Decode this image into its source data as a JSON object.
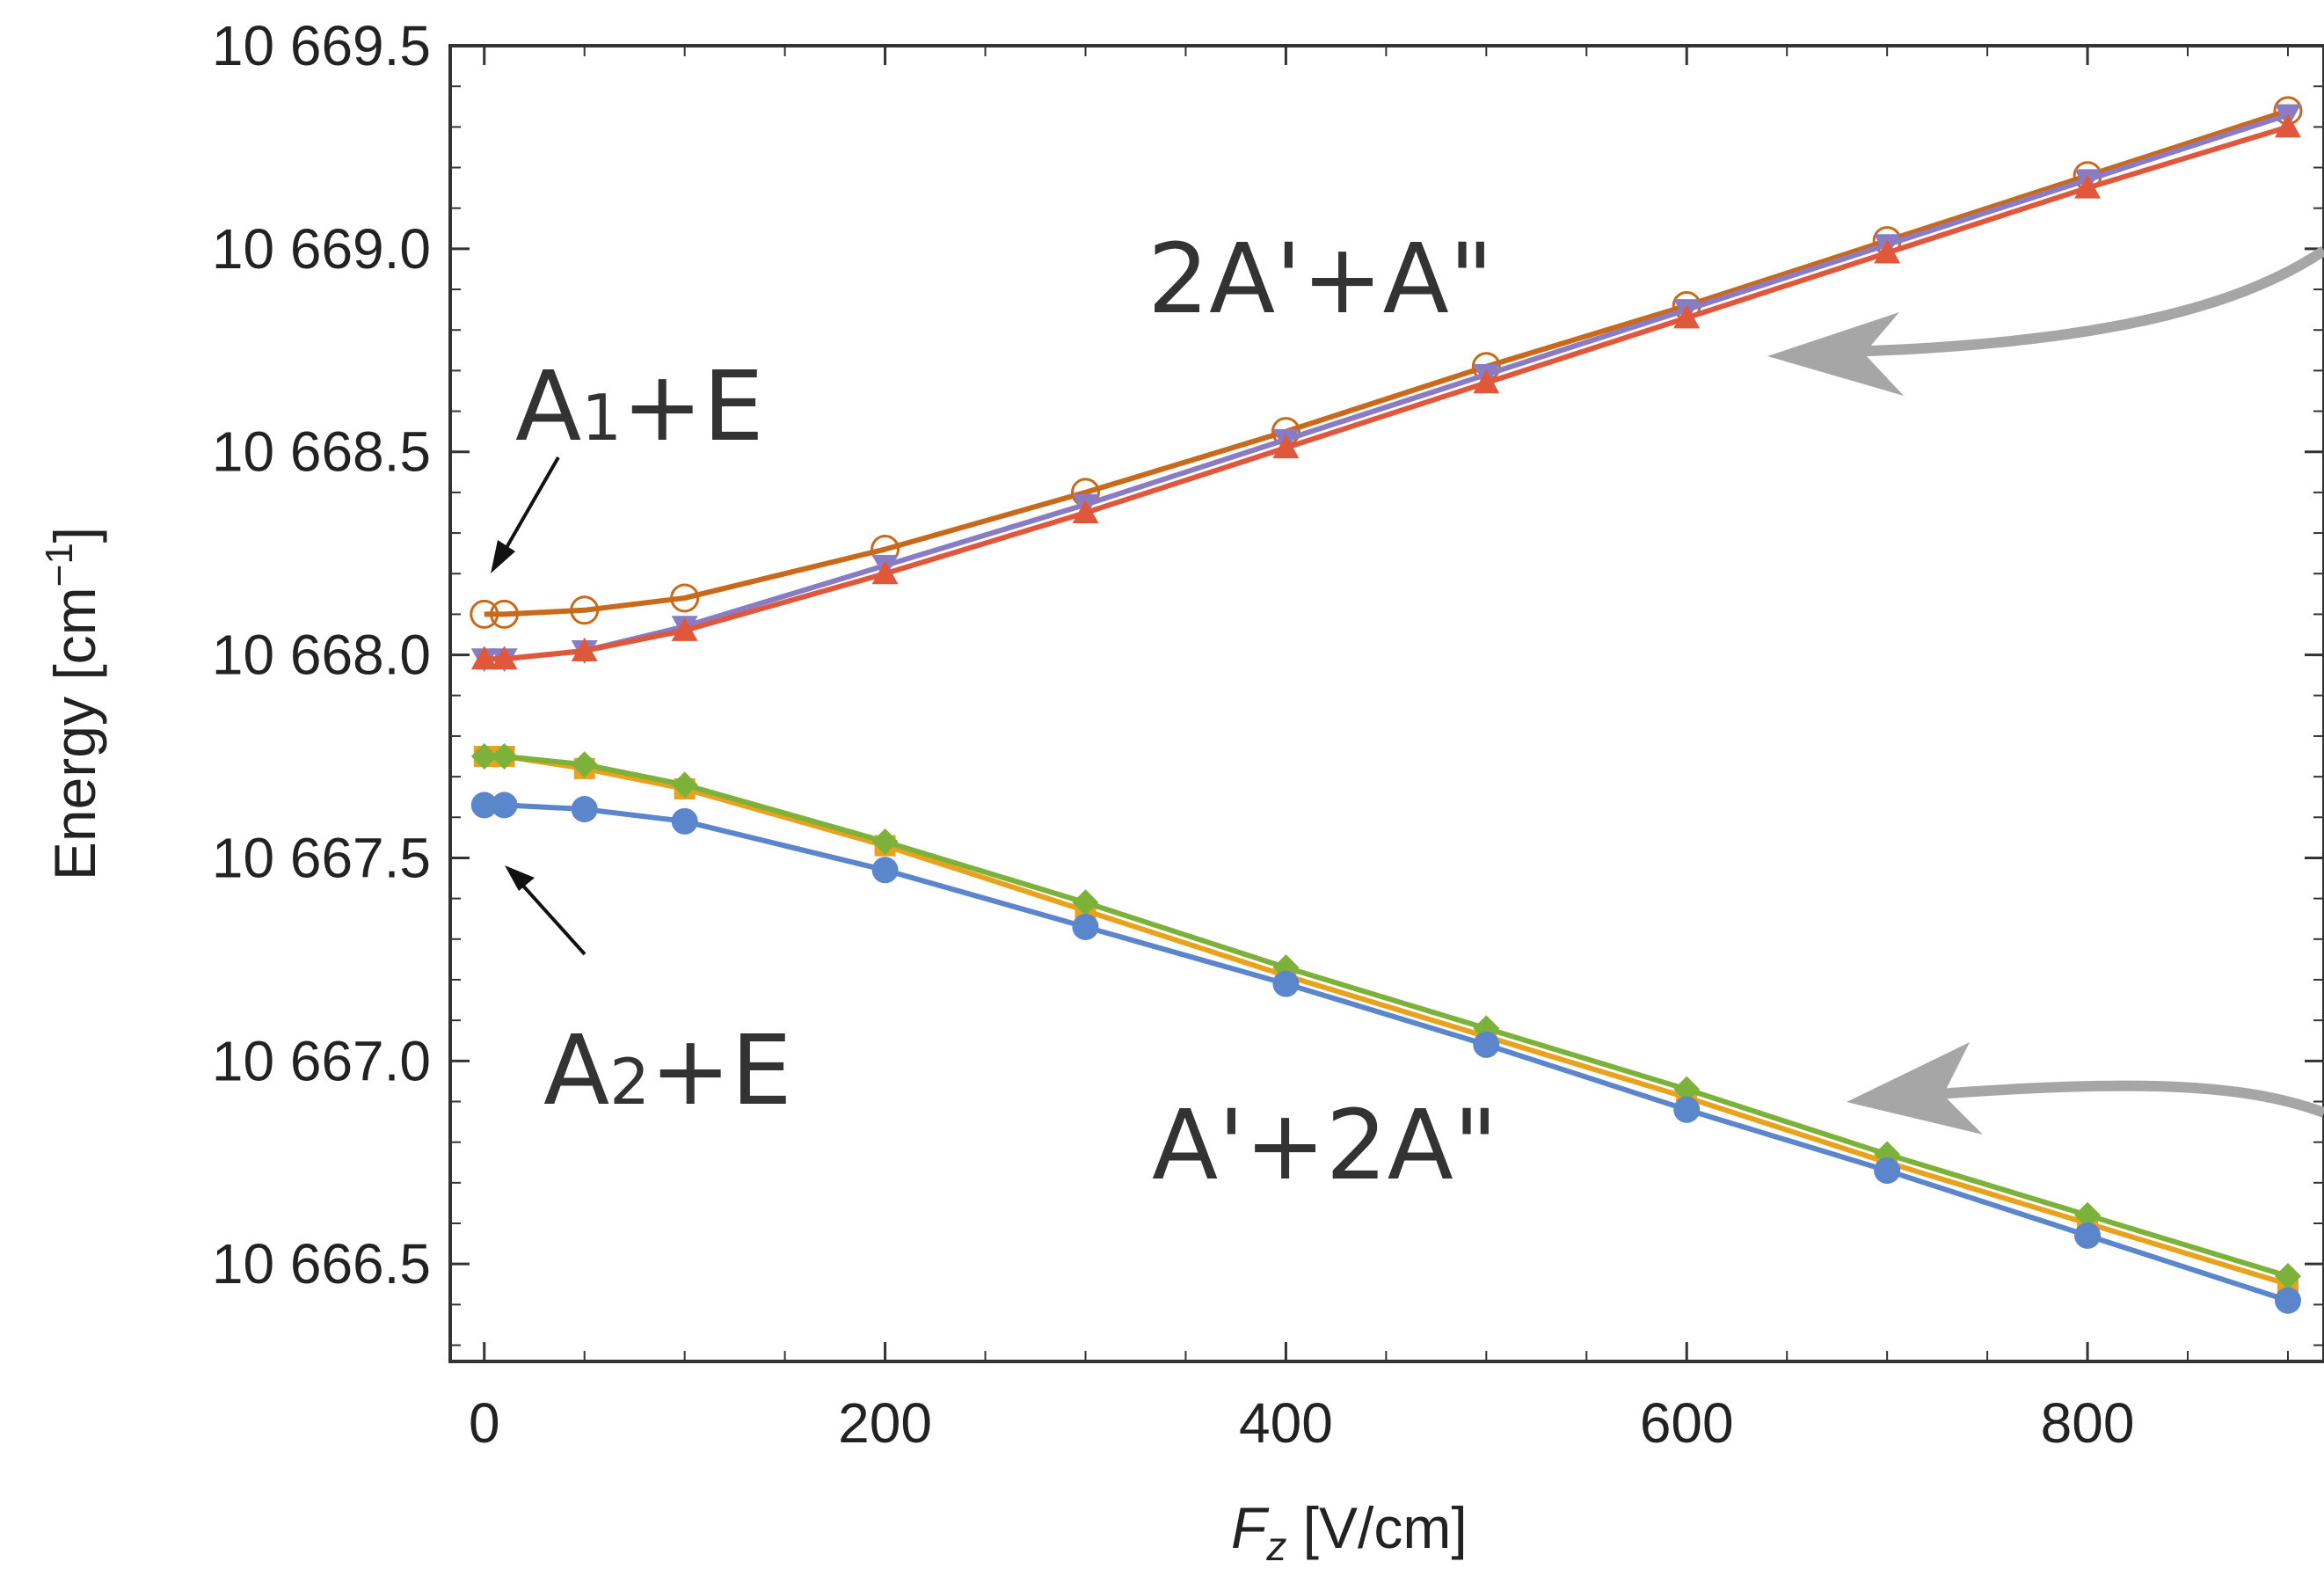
{
  "chart_data": {
    "type": "line",
    "xlabel": "F",
    "xlabel_sub": "z",
    "xlabel_unit": " [V/cm]",
    "ylabel": "Energy [cm",
    "ylabel_sup": "−1",
    "ylabel_end": "]",
    "xlim": [
      -17,
      918
    ],
    "ylim": [
      10666.26,
      10669.5
    ],
    "xticks": [
      0,
      200,
      400,
      600,
      800
    ],
    "xtick_labels": [
      "0",
      "200",
      "400",
      "600",
      "800"
    ],
    "yticks": [
      10666.5,
      10667.0,
      10667.5,
      10668.0,
      10668.5,
      10669.0,
      10669.5
    ],
    "ytick_labels": [
      "10 666.5",
      "10 667.0",
      "10 667.5",
      "10 668.0",
      "10 668.5",
      "10 669.0",
      "10 669.5"
    ],
    "x": [
      0,
      10,
      50,
      100,
      200,
      300,
      400,
      500,
      600,
      700,
      800,
      900
    ],
    "series": [
      {
        "color": "#c8691c",
        "marker": "open-circle",
        "values": [
          10668.1,
          10668.1,
          10668.11,
          10668.14,
          10668.26,
          10668.4,
          10668.55,
          10668.71,
          10668.86,
          10669.02,
          10669.18,
          10669.34
        ]
      },
      {
        "color": "#8a7cc4",
        "marker": "down-triangle",
        "values": [
          10667.99,
          10667.99,
          10668.01,
          10668.07,
          10668.22,
          10668.37,
          10668.53,
          10668.69,
          10668.85,
          10669.01,
          10669.17,
          10669.33
        ]
      },
      {
        "color": "#e0583c",
        "marker": "up-triangle",
        "values": [
          10667.99,
          10667.99,
          10668.01,
          10668.06,
          10668.2,
          10668.35,
          10668.51,
          10668.67,
          10668.83,
          10668.99,
          10669.15,
          10669.3
        ]
      },
      {
        "color": "#e8a21e",
        "marker": "square",
        "values": [
          10667.75,
          10667.75,
          10667.72,
          10667.67,
          10667.53,
          10667.37,
          10667.21,
          10667.06,
          10666.91,
          10666.75,
          10666.6,
          10666.45
        ]
      },
      {
        "color": "#7cb23a",
        "marker": "diamond",
        "values": [
          10667.75,
          10667.75,
          10667.73,
          10667.68,
          10667.54,
          10667.39,
          10667.23,
          10667.08,
          10666.93,
          10666.77,
          10666.62,
          10666.47
        ]
      },
      {
        "color": "#5b86cc",
        "marker": "filled-circle",
        "values": [
          10667.63,
          10667.63,
          10667.62,
          10667.59,
          10667.47,
          10667.33,
          10667.19,
          10667.04,
          10666.88,
          10666.73,
          10666.57,
          10666.41
        ]
      }
    ],
    "annotations": [
      {
        "text": "2A'+A\"",
        "side": "upper-center"
      },
      {
        "text": "A'+2A\"",
        "side": "lower-center"
      },
      {
        "text_main": "A",
        "text_sub": "1",
        "text_end": "+E",
        "side": "upper-left"
      },
      {
        "text_main": "A",
        "text_sub": "2",
        "text_end": "+E",
        "side": "lower-left"
      }
    ],
    "grid": false,
    "legend": "none"
  }
}
